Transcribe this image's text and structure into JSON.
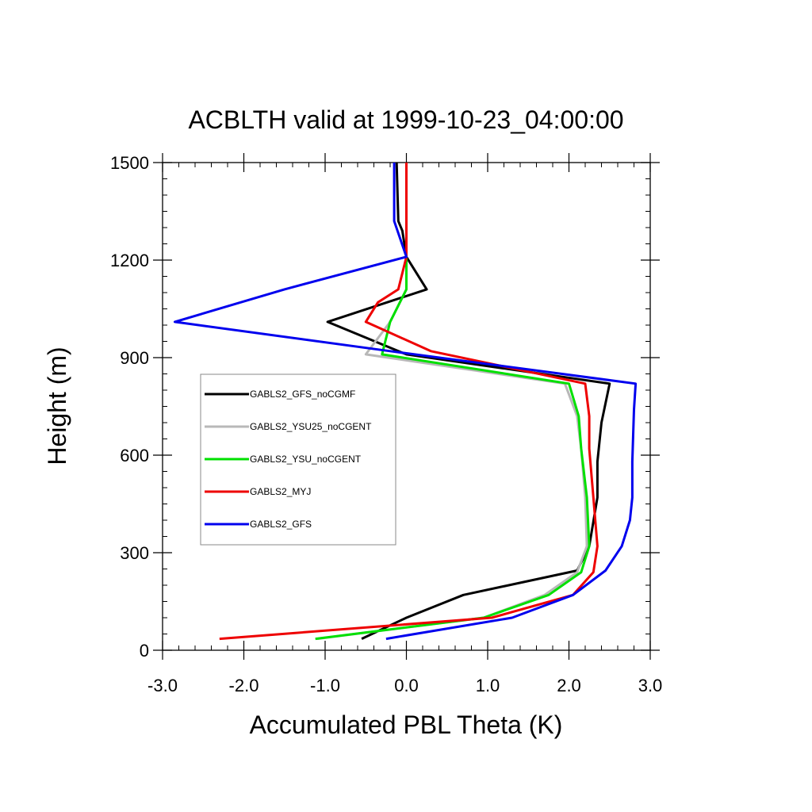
{
  "chart_data": {
    "type": "line",
    "title": "ACBLTH valid at 1999-10-23_04:00:00",
    "xlabel": "Accumulated PBL Theta (K)",
    "ylabel": "Height (m)",
    "xlim": [
      -3.0,
      3.0
    ],
    "ylim": [
      0,
      1500
    ],
    "xticks": [
      -3.0,
      -2.0,
      -1.0,
      0.0,
      1.0,
      2.0,
      3.0
    ],
    "xtick_labels": [
      "-3.0",
      "-2.0",
      "-1.0",
      "0.0",
      "1.0",
      "2.0",
      "3.0"
    ],
    "yticks": [
      0,
      300,
      600,
      900,
      1200,
      1500
    ],
    "ytick_labels": [
      "0",
      "300",
      "600",
      "900",
      "1200",
      "1500"
    ],
    "grid": false,
    "legend_position": "left-center",
    "series": [
      {
        "name": "GABLS2_GFS_noCGMF",
        "color": "#000000",
        "points": [
          [
            -0.55,
            35
          ],
          [
            0.0,
            100
          ],
          [
            0.7,
            170
          ],
          [
            2.1,
            245
          ],
          [
            2.25,
            320
          ],
          [
            2.35,
            470
          ],
          [
            2.35,
            580
          ],
          [
            2.4,
            700
          ],
          [
            2.5,
            820
          ],
          [
            0.0,
            910
          ],
          [
            -0.97,
            1010
          ],
          [
            0.25,
            1110
          ],
          [
            0.0,
            1210
          ],
          [
            -0.05,
            1290
          ],
          [
            -0.1,
            1320
          ],
          [
            -0.12,
            1500
          ]
        ]
      },
      {
        "name": "GABLS2_YSU25_noCGENT",
        "color": "#b8b8b8",
        "points": [
          [
            -1.1,
            35
          ],
          [
            0.95,
            100
          ],
          [
            1.7,
            170
          ],
          [
            2.1,
            240
          ],
          [
            2.22,
            320
          ],
          [
            2.2,
            470
          ],
          [
            2.15,
            620
          ],
          [
            2.1,
            720
          ],
          [
            1.95,
            820
          ],
          [
            -0.5,
            910
          ],
          [
            -0.2,
            1010
          ],
          [
            0.0,
            1110
          ],
          [
            0.0,
            1210
          ],
          [
            0.0,
            1500
          ]
        ]
      },
      {
        "name": "GABLS2_YSU_noCGENT",
        "color": "#00e000",
        "points": [
          [
            -1.12,
            35
          ],
          [
            0.95,
            100
          ],
          [
            1.75,
            170
          ],
          [
            2.15,
            240
          ],
          [
            2.25,
            320
          ],
          [
            2.22,
            470
          ],
          [
            2.15,
            620
          ],
          [
            2.12,
            720
          ],
          [
            2.0,
            820
          ],
          [
            -0.3,
            910
          ],
          [
            -0.2,
            1010
          ],
          [
            0.0,
            1110
          ],
          [
            0.0,
            1210
          ],
          [
            0.0,
            1500
          ]
        ]
      },
      {
        "name": "GABLS2_MYJ",
        "color": "#ee0000",
        "points": [
          [
            -2.3,
            35
          ],
          [
            1.05,
            100
          ],
          [
            2.05,
            170
          ],
          [
            2.3,
            240
          ],
          [
            2.35,
            320
          ],
          [
            2.3,
            470
          ],
          [
            2.25,
            620
          ],
          [
            2.25,
            720
          ],
          [
            2.2,
            820
          ],
          [
            0.3,
            920
          ],
          [
            -0.5,
            1010
          ],
          [
            -0.35,
            1070
          ],
          [
            -0.1,
            1110
          ],
          [
            0.0,
            1210
          ],
          [
            0.0,
            1500
          ]
        ]
      },
      {
        "name": "GABLS2_GFS",
        "color": "#0000ee",
        "points": [
          [
            -0.25,
            35
          ],
          [
            1.3,
            100
          ],
          [
            2.05,
            170
          ],
          [
            2.45,
            245
          ],
          [
            2.65,
            320
          ],
          [
            2.75,
            400
          ],
          [
            2.78,
            470
          ],
          [
            2.78,
            580
          ],
          [
            2.8,
            740
          ],
          [
            2.82,
            820
          ],
          [
            -0.2,
            920
          ],
          [
            -2.85,
            1010
          ],
          [
            -1.5,
            1110
          ],
          [
            0.0,
            1210
          ],
          [
            -0.15,
            1320
          ],
          [
            -0.15,
            1500
          ]
        ]
      }
    ]
  }
}
